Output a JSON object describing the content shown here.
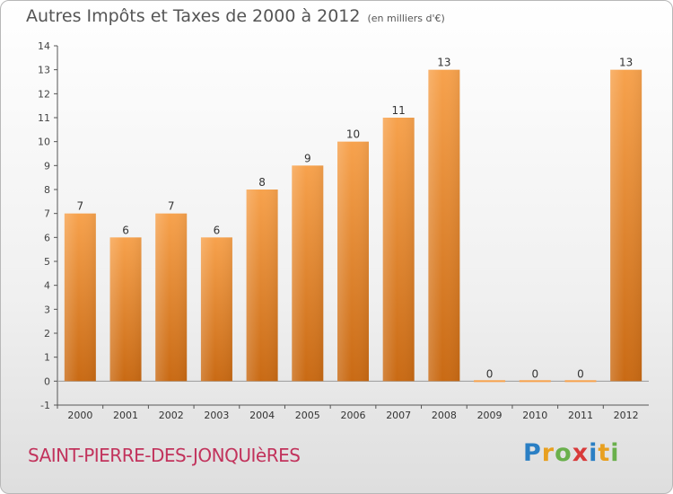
{
  "title": "Autres Impôts et Taxes de 2000 à 2012",
  "subtitle": "(en milliers d'€)",
  "commune": "SAINT-PIERRE-DES-JONQUIèRES",
  "logo": {
    "letters": [
      "P",
      "r",
      "o",
      "x",
      "i",
      "t",
      "i"
    ],
    "colors": [
      "#2a7fc4",
      "#e8a020",
      "#6ab04c",
      "#d83a3a",
      "#2a7fc4",
      "#e8a020",
      "#6ab04c"
    ]
  },
  "colors": {
    "bar_top": "#f7a24d",
    "bar_bottom": "#c96a14",
    "axis": "#555555",
    "grid": "#cccccc"
  },
  "chart_data": {
    "type": "bar",
    "categories": [
      "2000",
      "2001",
      "2002",
      "2003",
      "2004",
      "2005",
      "2006",
      "2007",
      "2008",
      "2009",
      "2010",
      "2011",
      "2012"
    ],
    "values": [
      7,
      6,
      7,
      6,
      8,
      9,
      10,
      11,
      13,
      0,
      0,
      0,
      13
    ],
    "data_labels": [
      "7",
      "6",
      "7",
      "6",
      "8",
      "9",
      "10",
      "11",
      "13",
      "0",
      "0",
      "0",
      "13"
    ],
    "y_ticks": [
      "-1",
      "0",
      "1",
      "2",
      "3",
      "4",
      "5",
      "6",
      "7",
      "8",
      "9",
      "10",
      "11",
      "12",
      "13",
      "14"
    ],
    "ylim": [
      -1,
      14
    ],
    "xlabel": "",
    "ylabel": "",
    "grid": false,
    "legend": false
  }
}
